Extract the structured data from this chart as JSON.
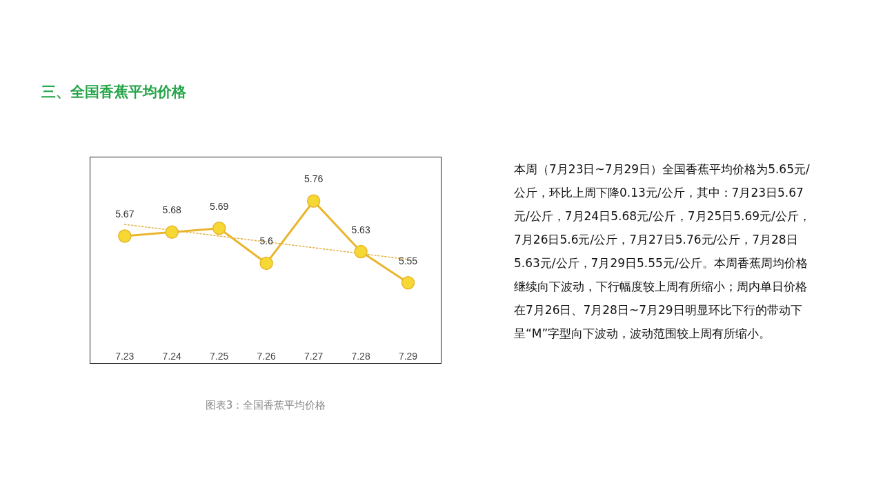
{
  "chart_data": {
    "type": "line",
    "title": "三、全国香蕉平均价格",
    "annotations": [
      "本周（7月23日~7月29日）全国香蕉平均价格为5.65元/公斤，环比上周下降0.13元/公斤，其中：7月23日5.67元/公斤，7月24日5.68元/公斤，7月25日5.69元/公斤，7月26日5.6元/公斤，7月27日5.76元/公斤，7月28日5.63元/公斤，7月29日5.55元/公斤。本周香蕉周均价格继续向下波动，下行幅度较上周有所缩小；周内单日价格在7月26日、7月28日~7月29日明显环比下行的带动下呈“M”字型向下波动，波动范围较上周有所缩小。",
      "图表3：全国香蕉平均价格"
    ],
    "categories": [
      "7.23",
      "7.24",
      "7.25",
      "7.26",
      "7.27",
      "7.28",
      "7.29"
    ],
    "series": [
      {
        "color": "#e9b52c",
        "values": [
          5.67,
          5.68,
          5.69,
          5.6,
          5.76,
          5.63,
          5.55
        ]
      },
      {
        "type": "line",
        "x": [
          "7.23",
          "7.29"
        ],
        "values": [
          5.7,
          5.61
        ],
        "color": "#e3b448",
        "line_style": "dotted",
        "marker": "none",
        "data_labels": false
      }
    ],
    "data_labels": true,
    "tick_labels": "x",
    "marker": "circle",
    "line_style": "solid"
  }
}
